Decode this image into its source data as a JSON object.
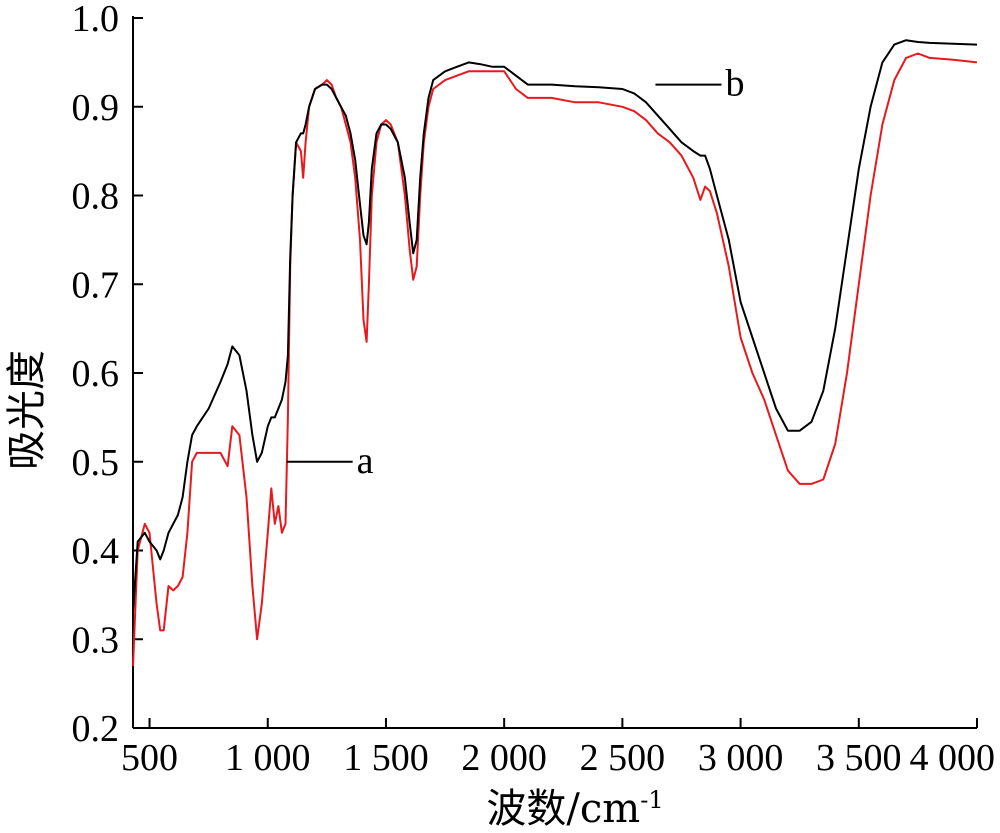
{
  "chart_data": {
    "type": "line",
    "title": "",
    "xlabel": "波数/cm-1",
    "xlabel_main": "波数/cm",
    "xlabel_sup": "-1",
    "ylabel": "吸光度",
    "xlim": [
      430,
      4000
    ],
    "ylim": [
      0.2,
      1.0
    ],
    "xticks": [
      500,
      1000,
      1500,
      2000,
      2500,
      3000,
      3500,
      4000
    ],
    "xtick_labels": [
      "500",
      "1 000",
      "1 500",
      "2 000",
      "2 500",
      "3 000",
      "3 500",
      "4 000"
    ],
    "yticks": [
      0.2,
      0.3,
      0.4,
      0.5,
      0.6,
      0.7,
      0.8,
      0.9,
      1.0
    ],
    "ytick_labels": [
      "0.2",
      "0.3",
      "0.4",
      "0.5",
      "0.6",
      "0.7",
      "0.8",
      "0.9",
      "1.0"
    ],
    "grid": false,
    "legend": "inline annotations",
    "series": [
      {
        "name": "a",
        "color": "#e8191c",
        "label_anchor": [
          1080,
          0.5
        ],
        "x": [
          430,
          450,
          480,
          500,
          530,
          545,
          560,
          580,
          600,
          620,
          640,
          660,
          680,
          700,
          750,
          800,
          830,
          850,
          880,
          910,
          935,
          955,
          975,
          1000,
          1015,
          1030,
          1045,
          1060,
          1075,
          1085,
          1095,
          1105,
          1120,
          1140,
          1150,
          1160,
          1175,
          1200,
          1230,
          1250,
          1270,
          1290,
          1310,
          1330,
          1350,
          1370,
          1390,
          1405,
          1418,
          1428,
          1440,
          1460,
          1480,
          1500,
          1520,
          1550,
          1580,
          1600,
          1615,
          1630,
          1645,
          1660,
          1680,
          1700,
          1750,
          1800,
          1850,
          1900,
          1950,
          2000,
          2050,
          2100,
          2150,
          2200,
          2300,
          2400,
          2500,
          2550,
          2600,
          2650,
          2700,
          2750,
          2800,
          2830,
          2850,
          2870,
          2900,
          2950,
          3000,
          3050,
          3100,
          3150,
          3200,
          3250,
          3300,
          3350,
          3400,
          3450,
          3500,
          3550,
          3600,
          3650,
          3700,
          3750,
          3800,
          3900,
          4000
        ],
        "y": [
          0.27,
          0.4,
          0.43,
          0.42,
          0.34,
          0.31,
          0.31,
          0.36,
          0.355,
          0.36,
          0.37,
          0.42,
          0.5,
          0.51,
          0.51,
          0.51,
          0.495,
          0.54,
          0.53,
          0.46,
          0.36,
          0.3,
          0.34,
          0.42,
          0.47,
          0.43,
          0.45,
          0.42,
          0.43,
          0.55,
          0.72,
          0.8,
          0.86,
          0.85,
          0.82,
          0.86,
          0.9,
          0.92,
          0.925,
          0.93,
          0.925,
          0.91,
          0.9,
          0.88,
          0.86,
          0.82,
          0.75,
          0.66,
          0.635,
          0.7,
          0.8,
          0.86,
          0.88,
          0.885,
          0.88,
          0.86,
          0.8,
          0.74,
          0.705,
          0.72,
          0.8,
          0.86,
          0.9,
          0.92,
          0.93,
          0.935,
          0.94,
          0.94,
          0.94,
          0.94,
          0.92,
          0.91,
          0.91,
          0.91,
          0.905,
          0.905,
          0.9,
          0.895,
          0.885,
          0.87,
          0.86,
          0.845,
          0.82,
          0.795,
          0.81,
          0.805,
          0.78,
          0.72,
          0.64,
          0.6,
          0.57,
          0.53,
          0.49,
          0.475,
          0.475,
          0.48,
          0.52,
          0.6,
          0.7,
          0.8,
          0.88,
          0.93,
          0.955,
          0.96,
          0.955,
          0.953,
          0.95
        ]
      },
      {
        "name": "b",
        "color": "#000000",
        "label_anchor": [
          2640,
          0.925
        ],
        "x": [
          430,
          450,
          480,
          500,
          530,
          545,
          560,
          580,
          600,
          620,
          640,
          660,
          680,
          700,
          750,
          800,
          830,
          850,
          880,
          910,
          935,
          955,
          975,
          1000,
          1015,
          1030,
          1045,
          1060,
          1075,
          1085,
          1095,
          1105,
          1120,
          1140,
          1150,
          1160,
          1175,
          1200,
          1230,
          1250,
          1270,
          1290,
          1310,
          1330,
          1350,
          1370,
          1390,
          1405,
          1418,
          1428,
          1440,
          1460,
          1480,
          1500,
          1520,
          1550,
          1580,
          1600,
          1615,
          1630,
          1645,
          1660,
          1680,
          1700,
          1750,
          1800,
          1850,
          1900,
          1950,
          2000,
          2050,
          2100,
          2150,
          2200,
          2300,
          2400,
          2500,
          2550,
          2600,
          2650,
          2700,
          2750,
          2800,
          2830,
          2850,
          2870,
          2900,
          2950,
          3000,
          3050,
          3100,
          3150,
          3200,
          3250,
          3300,
          3350,
          3400,
          3450,
          3500,
          3550,
          3600,
          3650,
          3700,
          3750,
          3800,
          3900,
          4000
        ],
        "y": [
          0.33,
          0.41,
          0.42,
          0.41,
          0.4,
          0.39,
          0.4,
          0.42,
          0.43,
          0.44,
          0.46,
          0.5,
          0.53,
          0.54,
          0.56,
          0.59,
          0.61,
          0.63,
          0.62,
          0.58,
          0.53,
          0.5,
          0.51,
          0.54,
          0.55,
          0.55,
          0.56,
          0.57,
          0.59,
          0.62,
          0.73,
          0.8,
          0.86,
          0.87,
          0.87,
          0.88,
          0.9,
          0.92,
          0.925,
          0.925,
          0.92,
          0.91,
          0.9,
          0.89,
          0.87,
          0.84,
          0.79,
          0.755,
          0.745,
          0.77,
          0.83,
          0.87,
          0.88,
          0.88,
          0.875,
          0.86,
          0.82,
          0.77,
          0.735,
          0.75,
          0.82,
          0.87,
          0.91,
          0.93,
          0.94,
          0.945,
          0.95,
          0.948,
          0.945,
          0.945,
          0.935,
          0.925,
          0.925,
          0.925,
          0.923,
          0.922,
          0.92,
          0.915,
          0.905,
          0.89,
          0.875,
          0.86,
          0.85,
          0.845,
          0.845,
          0.83,
          0.8,
          0.75,
          0.68,
          0.64,
          0.6,
          0.56,
          0.535,
          0.535,
          0.545,
          0.58,
          0.65,
          0.74,
          0.83,
          0.9,
          0.95,
          0.97,
          0.975,
          0.973,
          0.972,
          0.971,
          0.97
        ]
      }
    ]
  }
}
